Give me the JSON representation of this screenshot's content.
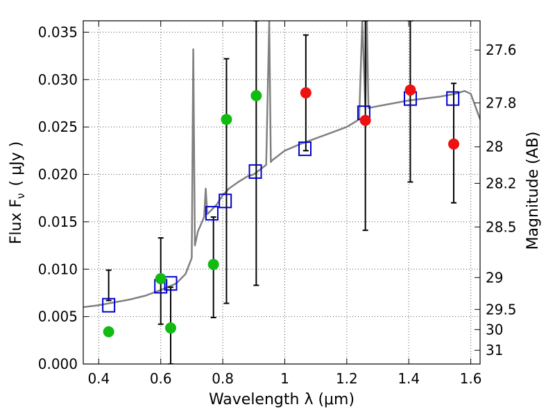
{
  "chart_data": {
    "type": "scatter",
    "xlabel": "Wavelength  λ (μm)",
    "ylabel": "Flux  F",
    "ylabel_sub": "ν",
    "ylabel_unit": "( μJy )",
    "y2label": "Magnitude (AB)",
    "xlim": [
      0.35,
      1.63
    ],
    "ylim": [
      0.0,
      0.0362
    ],
    "grid": true,
    "x_ticks": [
      0.4,
      0.6,
      0.8,
      1.0,
      1.2,
      1.4,
      1.6
    ],
    "x_tick_labels": [
      "0.4",
      "0.6",
      "0.8",
      "1",
      "1.2",
      "1.4",
      "1.6"
    ],
    "y_ticks": [
      0.0,
      0.005,
      0.01,
      0.015,
      0.02,
      0.025,
      0.03,
      0.035
    ],
    "y_tick_labels": [
      "0.000",
      "0.005",
      "0.010",
      "0.015",
      "0.020",
      "0.025",
      "0.030",
      "0.035"
    ],
    "mag_ticks": [
      27.6,
      27.8,
      28,
      28.2,
      28.5,
      29,
      29.5,
      30,
      31
    ],
    "mag_tick_labels": [
      "27.6",
      "27.8",
      "28",
      "28.2",
      "28.5",
      "29",
      "29.5",
      "30",
      "31"
    ],
    "colors": {
      "spectrum": "#808080",
      "model": "#0000cc",
      "green": "#11bb11",
      "red": "#ee1111",
      "errorbar": "#000000"
    },
    "spectrum": {
      "x": [
        0.35,
        0.4,
        0.45,
        0.5,
        0.55,
        0.6,
        0.65,
        0.68,
        0.7,
        0.705,
        0.71,
        0.72,
        0.74,
        0.745,
        0.75,
        0.78,
        0.8,
        0.82,
        0.85,
        0.88,
        0.9,
        0.92,
        0.94,
        0.95,
        0.955,
        0.96,
        1.0,
        1.05,
        1.1,
        1.15,
        1.2,
        1.24,
        1.25,
        1.26,
        1.265,
        1.27,
        1.3,
        1.35,
        1.4,
        1.45,
        1.5,
        1.55,
        1.58,
        1.6,
        1.63
      ],
      "y": [
        0.006,
        0.0062,
        0.0065,
        0.0068,
        0.0072,
        0.0078,
        0.0085,
        0.0095,
        0.0112,
        0.0332,
        0.0125,
        0.014,
        0.0155,
        0.0185,
        0.0158,
        0.0168,
        0.0178,
        0.0185,
        0.0192,
        0.0198,
        0.02,
        0.0205,
        0.021,
        0.0362,
        0.0213,
        0.0215,
        0.0225,
        0.0232,
        0.0238,
        0.0244,
        0.025,
        0.0258,
        0.0362,
        0.027,
        0.0362,
        0.027,
        0.0272,
        0.0275,
        0.0278,
        0.028,
        0.0282,
        0.0285,
        0.0288,
        0.0285,
        0.0258
      ]
    },
    "series": [
      {
        "marker": "square",
        "color": "#0000cc",
        "x": [
          0.432,
          0.6,
          0.632,
          0.765,
          0.808,
          0.905,
          1.065,
          1.255,
          1.405,
          1.542
        ],
        "y": [
          0.0062,
          0.0082,
          0.0085,
          0.0159,
          0.0172,
          0.0203,
          0.0227,
          0.0265,
          0.028,
          0.028
        ]
      },
      {
        "marker": "circle",
        "color": "#11bb11",
        "x": [
          0.432,
          0.6,
          0.632,
          0.77,
          0.812,
          0.908
        ],
        "y": [
          0.0034,
          0.009,
          0.0038,
          0.0105,
          0.0258,
          0.0283
        ],
        "yerr_low": [
          0.0067,
          0.0042,
          0.0,
          0.0049,
          0.0064,
          0.0083
        ],
        "yerr_high": [
          0.0099,
          0.0133,
          0.0081,
          0.0155,
          0.0322,
          0.0362
        ]
      },
      {
        "marker": "circle",
        "color": "#ee1111",
        "x": [
          1.068,
          1.26,
          1.405,
          1.545
        ],
        "y": [
          0.0286,
          0.0257,
          0.0289,
          0.0232
        ],
        "yerr_low": [
          0.0225,
          0.0141,
          0.0192,
          0.017
        ],
        "yerr_high": [
          0.0347,
          0.0362,
          0.0362,
          0.0296
        ]
      }
    ]
  }
}
